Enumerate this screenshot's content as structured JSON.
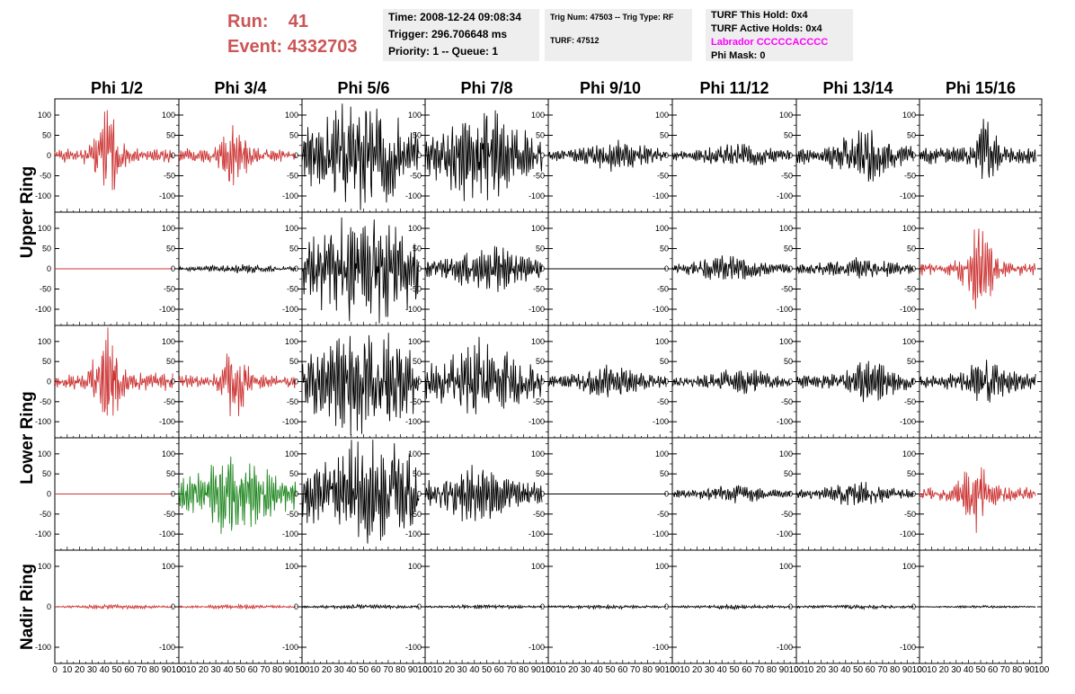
{
  "header": {
    "run_label": "Run:",
    "run_value": "41",
    "event_label": "Event:",
    "event_value": "4332703",
    "time": "Time: 2008-12-24 09:08:34",
    "trigger": "Trigger: 296.706648 ms",
    "priority": "Priority: 1 -- Queue: 1",
    "trig_num": "Trig Num: 47503 -- Trig Type: RF",
    "turf": "TURF: 47512",
    "turf_this_hold": "TURF This Hold: 0x4",
    "turf_active_holds": "TURF Active Holds: 0x4",
    "labrador": "Labrador CCCCCACCCC",
    "phi_mask": "Phi Mask: 0"
  },
  "colors": {
    "run_text": "#cc5555",
    "labrador_text": "#ff00ff",
    "info_box_bg": "#eeeeee",
    "trace_red": "#cc3333",
    "trace_green": "#228822",
    "trace_black": "#000000"
  },
  "chart_data": {
    "type": "line",
    "columns": [
      "Phi 1/2",
      "Phi 3/4",
      "Phi 5/6",
      "Phi 7/8",
      "Phi 9/10",
      "Phi 11/12",
      "Phi 13/14",
      "Phi 15/16"
    ],
    "rows": [
      "Upper Ring",
      "Upper Ring",
      "Lower Ring",
      "Lower Ring",
      "Nadir Ring"
    ],
    "row_labels": [
      "Upper Ring",
      "Lower Ring",
      "Nadir Ring"
    ],
    "xlim": [
      0,
      100
    ],
    "ylim": [
      -140,
      140
    ],
    "x_ticks": [
      0,
      10,
      20,
      30,
      40,
      50,
      60,
      70,
      80,
      90,
      100
    ],
    "y_ticks": [
      -100,
      -50,
      0,
      50,
      100
    ],
    "y_ticks_nadir": [
      -100,
      0,
      100
    ],
    "waveforms": [
      [
        {
          "color": "red",
          "amp": 15,
          "burst": 100,
          "center": 42,
          "width": 10,
          "seed": 1
        },
        {
          "color": "red",
          "amp": 15,
          "burst": 70,
          "center": 45,
          "width": 10,
          "seed": 2
        },
        {
          "color": "black",
          "amp": 55,
          "burst": 80,
          "center": 50,
          "width": 30,
          "seed": 3
        },
        {
          "color": "black",
          "amp": 45,
          "burst": 70,
          "center": 45,
          "width": 25,
          "seed": 4
        },
        {
          "color": "black",
          "amp": 12,
          "burst": 25,
          "center": 55,
          "width": 25,
          "seed": 5
        },
        {
          "color": "black",
          "amp": 10,
          "burst": 20,
          "center": 55,
          "width": 25,
          "seed": 6
        },
        {
          "color": "black",
          "amp": 20,
          "burst": 50,
          "center": 55,
          "width": 20,
          "seed": 7
        },
        {
          "color": "black",
          "amp": 20,
          "burst": 70,
          "center": 55,
          "width": 8,
          "seed": 8
        }
      ],
      [
        {
          "color": "red",
          "amp": 0,
          "burst": 0,
          "center": 50,
          "width": 10,
          "seed": 9
        },
        {
          "color": "black",
          "amp": 4,
          "burst": 6,
          "center": 50,
          "width": 30,
          "seed": 10
        },
        {
          "color": "black",
          "amp": 60,
          "burst": 70,
          "center": 50,
          "width": 40,
          "seed": 11
        },
        {
          "color": "black",
          "amp": 20,
          "burst": 35,
          "center": 50,
          "width": 25,
          "seed": 12
        },
        {
          "color": "black",
          "amp": 0,
          "burst": 0,
          "center": 50,
          "width": 10,
          "seed": 13
        },
        {
          "color": "black",
          "amp": 10,
          "burst": 20,
          "center": 45,
          "width": 25,
          "seed": 14
        },
        {
          "color": "black",
          "amp": 10,
          "burst": 18,
          "center": 50,
          "width": 25,
          "seed": 15
        },
        {
          "color": "red",
          "amp": 15,
          "burst": 90,
          "center": 48,
          "width": 12,
          "seed": 16
        }
      ],
      [
        {
          "color": "red",
          "amp": 20,
          "burst": 100,
          "center": 42,
          "width": 10,
          "seed": 17
        },
        {
          "color": "red",
          "amp": 15,
          "burst": 70,
          "center": 45,
          "width": 10,
          "seed": 18
        },
        {
          "color": "black",
          "amp": 55,
          "burst": 75,
          "center": 50,
          "width": 30,
          "seed": 19
        },
        {
          "color": "black",
          "amp": 35,
          "burst": 60,
          "center": 45,
          "width": 25,
          "seed": 20
        },
        {
          "color": "black",
          "amp": 12,
          "burst": 25,
          "center": 50,
          "width": 25,
          "seed": 21
        },
        {
          "color": "black",
          "amp": 10,
          "burst": 20,
          "center": 55,
          "width": 25,
          "seed": 22
        },
        {
          "color": "black",
          "amp": 15,
          "burst": 35,
          "center": 60,
          "width": 20,
          "seed": 23
        },
        {
          "color": "black",
          "amp": 15,
          "burst": 35,
          "center": 55,
          "width": 20,
          "seed": 24
        }
      ],
      [
        {
          "color": "red",
          "amp": 0,
          "burst": 0,
          "center": 50,
          "width": 10,
          "seed": 25
        },
        {
          "color": "green",
          "amp": 35,
          "burst": 60,
          "center": 45,
          "width": 25,
          "seed": 26
        },
        {
          "color": "black",
          "amp": 55,
          "burst": 75,
          "center": 55,
          "width": 35,
          "seed": 27
        },
        {
          "color": "black",
          "amp": 25,
          "burst": 40,
          "center": 40,
          "width": 25,
          "seed": 28
        },
        {
          "color": "black",
          "amp": 0,
          "burst": 0,
          "center": 50,
          "width": 10,
          "seed": 29
        },
        {
          "color": "black",
          "amp": 8,
          "burst": 14,
          "center": 50,
          "width": 25,
          "seed": 30
        },
        {
          "color": "black",
          "amp": 10,
          "burst": 18,
          "center": 50,
          "width": 25,
          "seed": 31
        },
        {
          "color": "red",
          "amp": 15,
          "burst": 70,
          "center": 45,
          "width": 12,
          "seed": 32
        }
      ],
      [
        {
          "color": "red",
          "amp": 2,
          "burst": 3,
          "center": 50,
          "width": 30,
          "seed": 33
        },
        {
          "color": "red",
          "amp": 2,
          "burst": 3,
          "center": 50,
          "width": 30,
          "seed": 34
        },
        {
          "color": "black",
          "amp": 2,
          "burst": 3,
          "center": 50,
          "width": 30,
          "seed": 35
        },
        {
          "color": "black",
          "amp": 2,
          "burst": 3,
          "center": 50,
          "width": 30,
          "seed": 36
        },
        {
          "color": "black",
          "amp": 2,
          "burst": 3,
          "center": 50,
          "width": 30,
          "seed": 37
        },
        {
          "color": "black",
          "amp": 2,
          "burst": 3,
          "center": 50,
          "width": 30,
          "seed": 38
        },
        {
          "color": "black",
          "amp": 2,
          "burst": 3,
          "center": 50,
          "width": 30,
          "seed": 39
        },
        {
          "color": "black",
          "amp": 1,
          "burst": 2,
          "center": 50,
          "width": 30,
          "seed": 40
        }
      ]
    ]
  }
}
